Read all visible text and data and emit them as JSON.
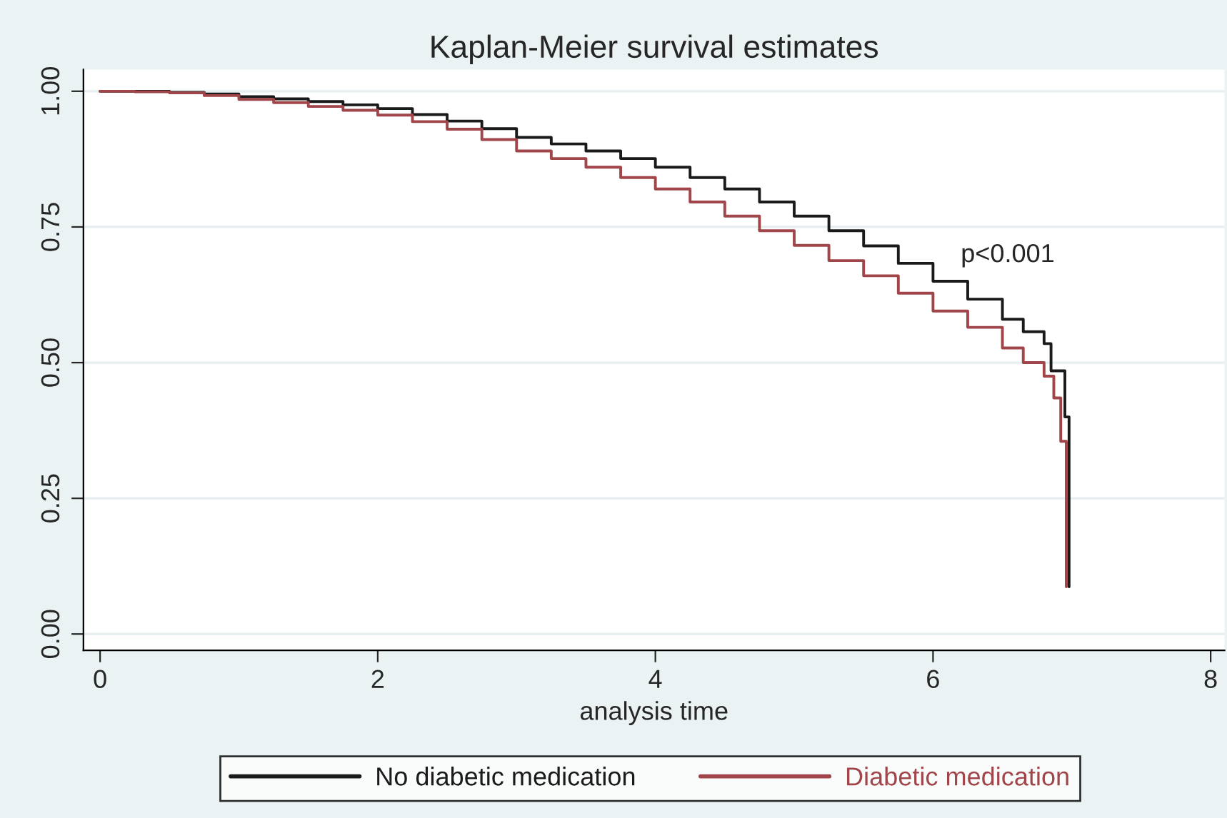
{
  "chart_data": {
    "type": "step",
    "title": "Kaplan-Meier survival estimates",
    "xlabel": "analysis time",
    "series": [
      {
        "name": "No diabetic medication",
        "color": "#1a1a1a",
        "x": [
          0,
          0.25,
          0.5,
          0.75,
          1,
          1.25,
          1.5,
          1.75,
          2,
          2.25,
          2.5,
          2.75,
          3,
          3.25,
          3.5,
          3.75,
          4,
          4.25,
          4.5,
          4.75,
          5,
          5.25,
          5.5,
          5.75,
          6,
          6.25,
          6.5,
          6.65,
          6.8,
          6.85,
          6.95,
          6.98
        ],
        "values": [
          1,
          1,
          0.998,
          0.995,
          0.99,
          0.986,
          0.981,
          0.975,
          0.968,
          0.957,
          0.945,
          0.931,
          0.915,
          0.903,
          0.89,
          0.876,
          0.86,
          0.841,
          0.82,
          0.796,
          0.77,
          0.743,
          0.715,
          0.683,
          0.65,
          0.617,
          0.58,
          0.557,
          0.535,
          0.485,
          0.4,
          0.087
        ]
      },
      {
        "name": "Diabetic medication",
        "color": "#a0454a",
        "x": [
          0,
          0.25,
          0.5,
          0.75,
          1,
          1.25,
          1.5,
          1.75,
          2,
          2.25,
          2.5,
          2.75,
          3,
          3.25,
          3.5,
          3.75,
          4,
          4.25,
          4.5,
          4.75,
          5,
          5.25,
          5.5,
          5.75,
          6,
          6.25,
          6.5,
          6.65,
          6.8,
          6.87,
          6.92,
          6.96
        ],
        "values": [
          1,
          0.999,
          0.997,
          0.992,
          0.985,
          0.979,
          0.972,
          0.965,
          0.956,
          0.944,
          0.93,
          0.911,
          0.89,
          0.876,
          0.86,
          0.841,
          0.82,
          0.796,
          0.77,
          0.743,
          0.716,
          0.688,
          0.66,
          0.628,
          0.595,
          0.565,
          0.527,
          0.5,
          0.475,
          0.435,
          0.355,
          0.087
        ]
      }
    ],
    "xlim": [
      -0.12,
      8.1
    ],
    "ylim": [
      -0.03,
      1.04
    ],
    "xticks": [
      0,
      2,
      4,
      6,
      8
    ],
    "yticks": [
      {
        "value": 0,
        "label": "0.00"
      },
      {
        "value": 0.25,
        "label": "0.25"
      },
      {
        "value": 0.5,
        "label": "0.50"
      },
      {
        "value": 0.75,
        "label": "0.75"
      },
      {
        "value": 1,
        "label": "1.00"
      }
    ],
    "grid": "y",
    "legend": "bottom",
    "annotations": [
      "p<0.001"
    ]
  }
}
